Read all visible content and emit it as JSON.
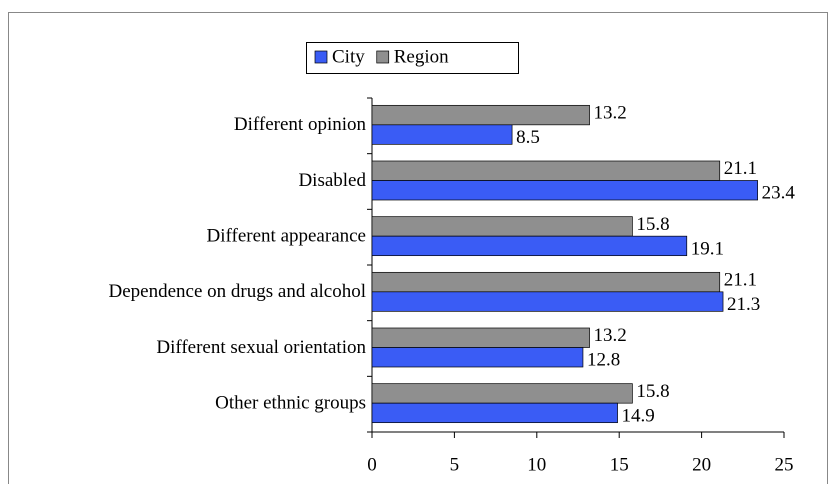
{
  "chart_data": {
    "type": "hbar",
    "categories": [
      "Different opinion",
      "Disabled",
      "Different appearance",
      "Dependence on drugs and alcohol",
      "Different sexual orientation",
      "Other ethnic groups"
    ],
    "series": [
      {
        "name": "City",
        "color": "#3a5cf5",
        "values": [
          8.5,
          23.4,
          19.1,
          21.3,
          12.8,
          14.9
        ]
      },
      {
        "name": "Region",
        "color": "#8f8f8f",
        "values": [
          13.2,
          21.1,
          15.8,
          21.1,
          13.2,
          15.8
        ]
      }
    ],
    "xlim": [
      0,
      25
    ],
    "xticks": [
      0,
      5,
      10,
      15,
      20,
      25
    ],
    "legend": "top"
  }
}
